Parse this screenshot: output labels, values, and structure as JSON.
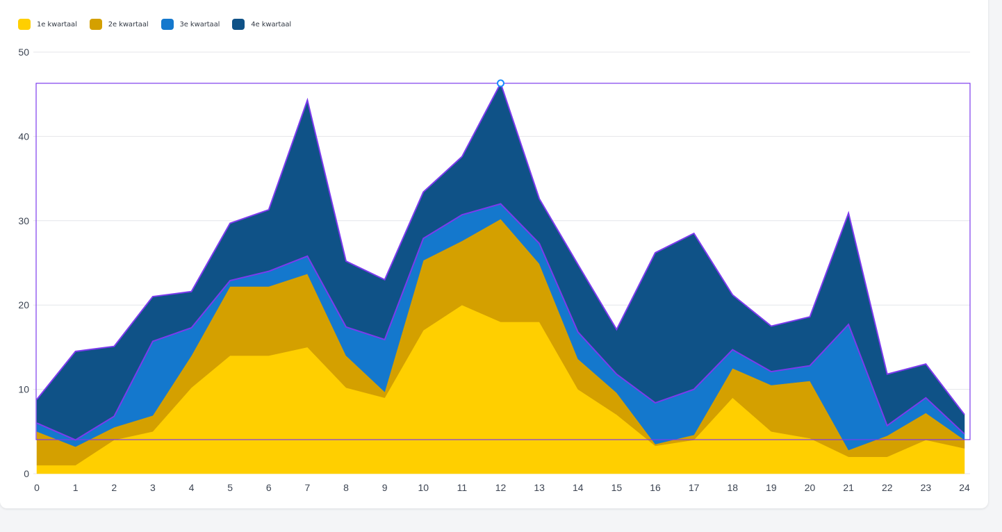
{
  "chart_data": {
    "type": "area",
    "stacked": true,
    "x": [
      0,
      1,
      2,
      3,
      4,
      5,
      6,
      7,
      8,
      9,
      10,
      11,
      12,
      13,
      14,
      15,
      16,
      17,
      18,
      19,
      20,
      21,
      22,
      23,
      24
    ],
    "ylim": [
      0,
      50
    ],
    "yticks": [
      0,
      10,
      20,
      30,
      40,
      50
    ],
    "grid": true,
    "legend_position": "top-left",
    "series": [
      {
        "name": "1e kwartaal",
        "color": "#ffcf00",
        "values": [
          1.0,
          1.0,
          4.0,
          5.0,
          10.2,
          14.0,
          14.0,
          15.0,
          10.2,
          9.0,
          17.0,
          20.0,
          18.0,
          18.0,
          10.0,
          7.0,
          3.3,
          4.0,
          9.0,
          5.0,
          4.2,
          2.0,
          2.0,
          4.0,
          3.0
        ]
      },
      {
        "name": "2e kwartaal",
        "color": "#d4a000",
        "values": [
          4.0,
          2.2,
          1.5,
          1.9,
          3.8,
          8.2,
          8.2,
          8.7,
          3.8,
          0.7,
          8.3,
          7.6,
          12.2,
          6.9,
          3.6,
          2.6,
          0.2,
          0.6,
          3.5,
          5.5,
          6.8,
          0.8,
          2.5,
          3.2,
          1.0
        ]
      },
      {
        "name": "3e kwartaal",
        "color": "#1478cd",
        "values": [
          1.0,
          0.8,
          1.3,
          8.8,
          3.3,
          0.7,
          1.8,
          2.1,
          3.4,
          6.2,
          2.6,
          3.1,
          1.8,
          2.4,
          3.2,
          2.2,
          4.9,
          5.4,
          2.2,
          1.6,
          1.8,
          14.9,
          1.2,
          1.8,
          0.7
        ]
      },
      {
        "name": "4e kwartaal",
        "color": "#0f5287",
        "values": [
          2.8,
          10.5,
          8.3,
          5.3,
          4.3,
          6.8,
          7.3,
          18.5,
          7.8,
          7.1,
          5.5,
          6.9,
          14.3,
          5.3,
          8.0,
          5.3,
          17.8,
          18.5,
          6.5,
          5.4,
          5.8,
          13.2,
          6.1,
          4.0,
          2.3
        ]
      }
    ],
    "highlight": {
      "x": 12,
      "color": "#7c3aed",
      "marker_color": "#1a8cff"
    }
  }
}
